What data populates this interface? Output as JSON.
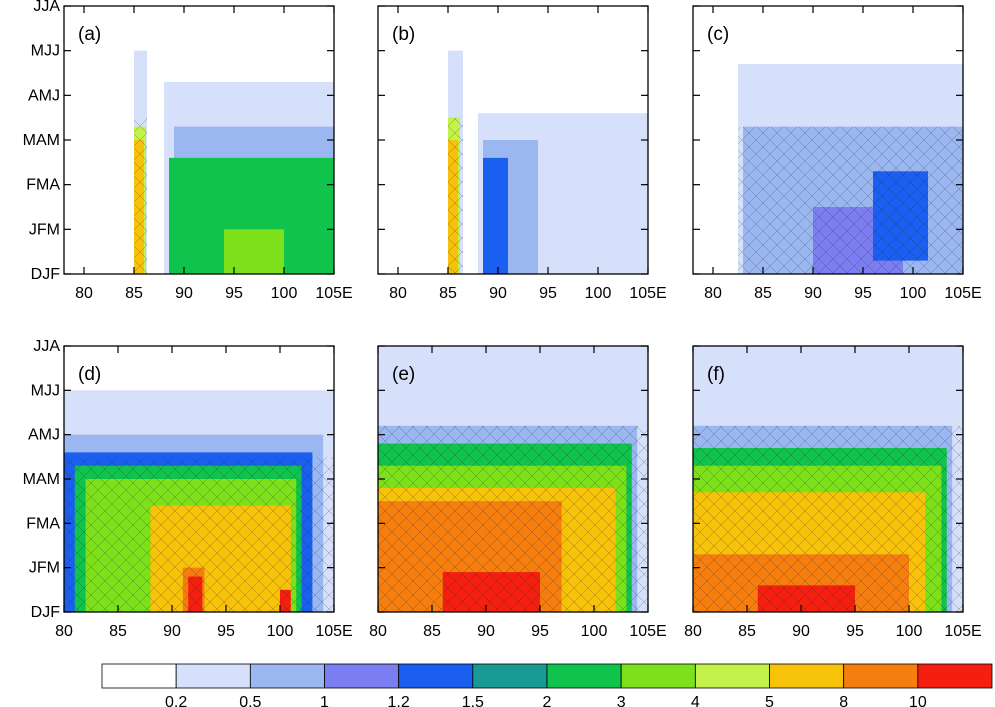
{
  "chart_data": {
    "type": "heatmap",
    "description_axes": {
      "y_ticks": [
        "DJF",
        "JFM",
        "FMA",
        "MAM",
        "AMJ",
        "MJJ",
        "JJA"
      ],
      "x_ticks": [
        "80",
        "85",
        "90",
        "95",
        "100",
        "105E"
      ],
      "x_range": [
        80,
        105
      ],
      "row1_x_range_start": [
        78,
        88,
        102
      ]
    },
    "colorbar": {
      "levels": [
        "0.2",
        "0.5",
        "1",
        "1.2",
        "1.5",
        "2",
        "3",
        "4",
        "5",
        "8",
        "10"
      ],
      "colors": [
        "#ffffff",
        "#d6e0fb",
        "#9bb7f2",
        "#7a7ef0",
        "#1a5ff0",
        "#199a94",
        "#0fc34c",
        "#7ce01a",
        "#c3f24a",
        "#f7c20a",
        "#f57e0f",
        "#f51f10"
      ]
    },
    "panels": [
      {
        "label": "(a)",
        "x_start": 78,
        "fields": [
          {
            "level": 1,
            "x": [
              85,
              86.3
            ],
            "t": [
              0,
              5
            ]
          },
          {
            "level": 1,
            "x": [
              88,
              105
            ],
            "t": [
              0,
              4.3
            ]
          },
          {
            "level": 2,
            "x": [
              89,
              105
            ],
            "t": [
              0,
              3.3
            ]
          },
          {
            "level": 3,
            "x": [
              89,
              96
            ],
            "t": [
              0.3,
              2.3
            ]
          },
          {
            "level": 6,
            "x": [
              88.5,
              105
            ],
            "t": [
              0,
              2.6
            ]
          },
          {
            "level": 7,
            "x": [
              94,
              100
            ],
            "t": [
              0,
              1
            ]
          },
          {
            "level": 8,
            "x": [
              85,
              86.2
            ],
            "t": [
              0,
              3.3
            ]
          },
          {
            "level": 9,
            "x": [
              85,
              86
            ],
            "t": [
              0,
              3
            ]
          }
        ]
      },
      {
        "label": "(b)",
        "x_start": 78,
        "fields": [
          {
            "level": 1,
            "x": [
              85,
              86.5
            ],
            "t": [
              0,
              5
            ]
          },
          {
            "level": 1,
            "x": [
              88,
              105
            ],
            "t": [
              0,
              3.6
            ]
          },
          {
            "level": 2,
            "x": [
              88.5,
              94
            ],
            "t": [
              0,
              3
            ]
          },
          {
            "level": 4,
            "x": [
              88.5,
              91
            ],
            "t": [
              0,
              2.6
            ]
          },
          {
            "level": 8,
            "x": [
              85,
              86.2
            ],
            "t": [
              0,
              3.5
            ]
          },
          {
            "level": 9,
            "x": [
              85,
              86
            ],
            "t": [
              0,
              3
            ]
          }
        ]
      },
      {
        "label": "(c)",
        "x_start": 78,
        "fields": [
          {
            "level": 1,
            "x": [
              82.5,
              105
            ],
            "t": [
              0,
              4.7
            ]
          },
          {
            "level": 2,
            "x": [
              83,
              105
            ],
            "t": [
              0,
              3.3
            ]
          },
          {
            "level": 3,
            "x": [
              90,
              99
            ],
            "t": [
              0,
              1.5
            ]
          },
          {
            "level": 4,
            "x": [
              96,
              101.5
            ],
            "t": [
              0.3,
              2.3
            ]
          }
        ]
      },
      {
        "label": "(d)",
        "x_start": 80,
        "fields": [
          {
            "level": 1,
            "x": [
              80,
              105
            ],
            "t": [
              0,
              5
            ]
          },
          {
            "level": 2,
            "x": [
              80,
              104
            ],
            "t": [
              0,
              4
            ]
          },
          {
            "level": 4,
            "x": [
              80,
              103
            ],
            "t": [
              0,
              3.6
            ]
          },
          {
            "level": 6,
            "x": [
              81,
              102
            ],
            "t": [
              0,
              3.3
            ]
          },
          {
            "level": 7,
            "x": [
              82,
              101.5
            ],
            "t": [
              0,
              3
            ]
          },
          {
            "level": 9,
            "x": [
              88,
              101
            ],
            "t": [
              0,
              2.4
            ]
          },
          {
            "level": 10,
            "x": [
              91,
              93
            ],
            "t": [
              0,
              1
            ]
          },
          {
            "level": 11,
            "x": [
              91.5,
              92.8
            ],
            "t": [
              0,
              0.8
            ]
          },
          {
            "level": 11,
            "x": [
              100,
              101
            ],
            "t": [
              0,
              0.5
            ]
          }
        ]
      },
      {
        "label": "(e)",
        "x_start": 80,
        "fields": [
          {
            "level": 1,
            "x": [
              80,
              105
            ],
            "t": [
              0,
              6
            ]
          },
          {
            "level": 2,
            "x": [
              80,
              104
            ],
            "t": [
              0,
              4.2
            ]
          },
          {
            "level": 6,
            "x": [
              80,
              103.5
            ],
            "t": [
              0,
              3.8
            ]
          },
          {
            "level": 7,
            "x": [
              80,
              103
            ],
            "t": [
              0,
              3.3
            ]
          },
          {
            "level": 9,
            "x": [
              80,
              102
            ],
            "t": [
              0,
              2.8
            ]
          },
          {
            "level": 10,
            "x": [
              80,
              97
            ],
            "t": [
              0,
              2.5
            ]
          },
          {
            "level": 11,
            "x": [
              86,
              95
            ],
            "t": [
              0,
              0.9
            ]
          }
        ]
      },
      {
        "label": "(f)",
        "x_start": 80,
        "fields": [
          {
            "level": 1,
            "x": [
              80,
              105
            ],
            "t": [
              0,
              6
            ]
          },
          {
            "level": 2,
            "x": [
              80,
              104
            ],
            "t": [
              0,
              4.2
            ]
          },
          {
            "level": 6,
            "x": [
              80,
              103.5
            ],
            "t": [
              0,
              3.7
            ]
          },
          {
            "level": 7,
            "x": [
              80,
              103
            ],
            "t": [
              0,
              3.3
            ]
          },
          {
            "level": 9,
            "x": [
              80,
              101.5
            ],
            "t": [
              0,
              2.7
            ]
          },
          {
            "level": 10,
            "x": [
              80,
              100
            ],
            "t": [
              0,
              1.3
            ]
          },
          {
            "level": 11,
            "x": [
              86,
              95
            ],
            "t": [
              0,
              0.6
            ]
          }
        ]
      }
    ]
  }
}
